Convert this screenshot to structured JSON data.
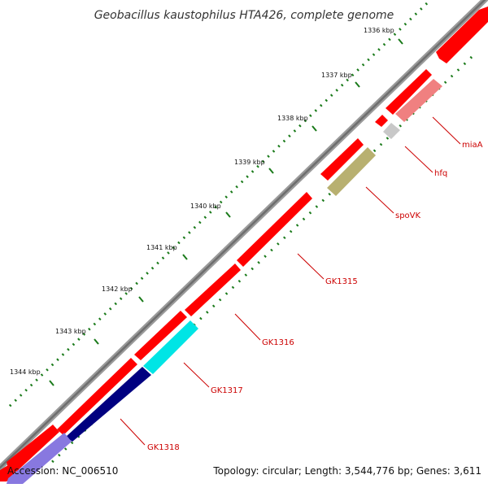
{
  "title": "Geobacillus kaustophilus HTA426, complete genome",
  "ticks": [
    {
      "label": "1336 kbp"
    },
    {
      "label": "1337 kbp"
    },
    {
      "label": "1338 kbp"
    },
    {
      "label": "1339 kbp"
    },
    {
      "label": "1340 kbp"
    },
    {
      "label": "1341 kbp"
    },
    {
      "label": "1342 kbp"
    },
    {
      "label": "1343 kbp"
    },
    {
      "label": "1344 kbp"
    }
  ],
  "genes": [
    {
      "name": "miaA"
    },
    {
      "name": "hfq"
    },
    {
      "name": "spoVK"
    },
    {
      "name": "GK1315"
    },
    {
      "name": "GK1316"
    },
    {
      "name": "GK1317"
    },
    {
      "name": "GK1318"
    }
  ],
  "footer": {
    "accession": "Accession: NC_006510",
    "summary": "Topology: circular; Length: 3,544,776 bp; Genes: 3,611"
  },
  "colors": {
    "forward_gene": "#ff0000",
    "backbone": "#808080",
    "tick_dots": "#1a7a1a",
    "label_text": "#cc0000",
    "miaA": "#f08080",
    "hfq": "#c0c0c0",
    "spoVK": "#b8b070",
    "GK1317": "#00e5e5",
    "GK1318": "#000080"
  }
}
